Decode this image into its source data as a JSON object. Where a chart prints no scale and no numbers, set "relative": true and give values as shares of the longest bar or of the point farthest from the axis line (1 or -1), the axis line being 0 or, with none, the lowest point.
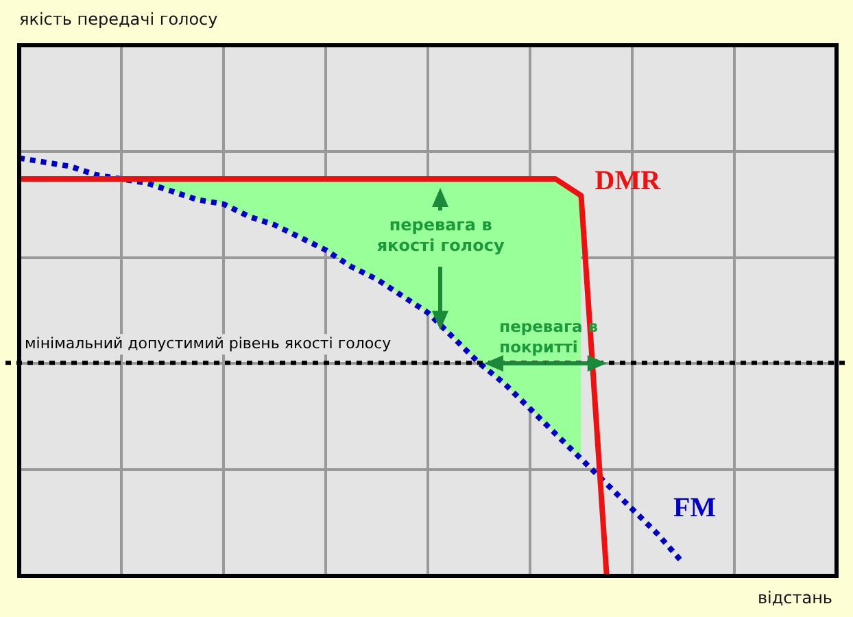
{
  "chart_data": {
    "type": "line",
    "relative": true,
    "xlabel": "відстань",
    "grid": true,
    "legend": false,
    "tick_labels": false,
    "marker": "none",
    "categories": [
      null,
      null,
      null,
      null,
      null,
      null,
      null,
      null,
      null,
      null,
      null,
      null,
      null,
      null,
      null,
      null,
      null,
      null,
      null,
      null,
      null,
      null,
      null,
      null,
      null,
      null,
      null,
      null,
      null,
      null,
      null,
      null,
      null
    ],
    "series": [
      {
        "type": "area",
        "color": "#99ff99",
        "values": [
          null,
          null,
          null,
          null,
          0.95,
          0.95,
          0.95,
          0.95,
          0.95,
          0.95,
          0.95,
          0.95,
          0.95,
          0.95,
          0.95,
          0.95,
          0.95,
          0.95,
          0.95,
          0.95,
          0.95,
          0.95,
          0.91,
          null,
          null,
          null,
          null,
          null,
          null,
          null,
          null,
          null,
          null
        ]
      },
      {
        "name": "DMR",
        "color": "#ee1111",
        "line_style": "solid",
        "values": [
          0.95,
          0.95,
          0.95,
          0.95,
          0.95,
          0.95,
          0.95,
          0.95,
          0.95,
          0.95,
          0.95,
          0.95,
          0.95,
          0.95,
          0.95,
          0.95,
          0.95,
          0.95,
          0.95,
          0.95,
          0.95,
          0.95,
          0.91,
          0,
          null,
          null,
          null,
          null,
          null,
          null,
          null,
          null,
          null
        ]
      },
      {
        "name": "FM",
        "color": "#0000cc",
        "line_style": "dotted",
        "values": [
          1,
          0.99,
          0.98,
          0.96,
          0.95,
          0.94,
          0.92,
          0.9,
          0.89,
          0.86,
          0.84,
          0.81,
          0.78,
          0.74,
          0.71,
          0.67,
          0.63,
          0.57,
          0.51,
          0.46,
          0.4,
          0.34,
          0.28,
          0.22,
          0.16,
          0.1,
          0.03,
          null,
          null,
          null,
          null,
          null,
          null
        ]
      }
    ],
    "ref_lines": [
      {
        "axis": "y",
        "value": 0.51,
        "label": "мінімальний допустимий рівень якості голосу",
        "color": "#000000",
        "line_style": "dotted"
      }
    ],
    "annotations": [
      "якість передачі голосу",
      "перевага в якості голосу",
      "перевага в покритті"
    ]
  }
}
